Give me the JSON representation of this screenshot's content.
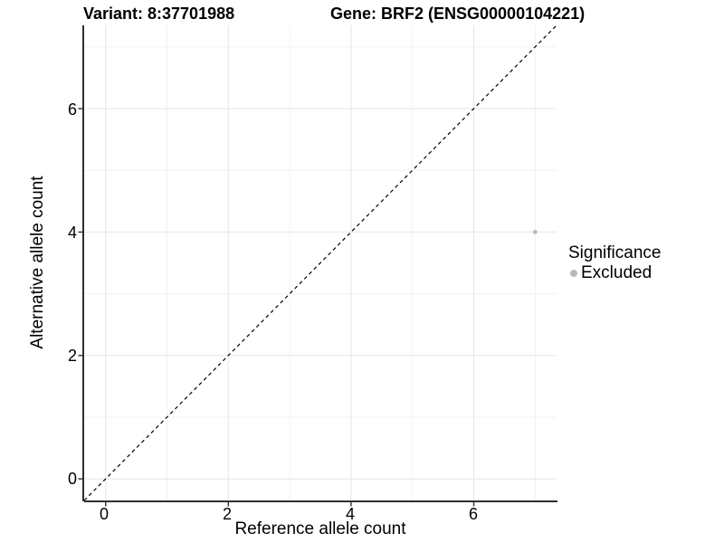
{
  "header": {
    "variant_title": "Variant: 8:37701988",
    "gene_title": "Gene: BRF2 (ENSG00000104221)"
  },
  "axes": {
    "x": {
      "title": "Reference allele count",
      "tick_labels": [
        "0",
        "2",
        "4",
        "6"
      ]
    },
    "y": {
      "title": "Alternative allele count",
      "tick_labels": [
        "0",
        "2",
        "4",
        "6"
      ]
    }
  },
  "legend": {
    "title": "Significance",
    "items": [
      {
        "label": "Excluded",
        "color": "#b9b9b9"
      }
    ]
  },
  "colors": {
    "grid_major": "#e9e9e9",
    "grid_minor": "#f1f1f1",
    "axis_line": "#2e2e2e",
    "reference_line": "#000000",
    "point": "#b9b9b9",
    "text": "#000000"
  },
  "chart_data": {
    "type": "scatter",
    "title": "Variant: 8:37701988 | Gene: BRF2 (ENSG00000104221)",
    "xlabel": "Reference allele count",
    "ylabel": "Alternative allele count",
    "xlim": [
      -0.35,
      7.35
    ],
    "ylim": [
      -0.35,
      7.35
    ],
    "x_ticks": [
      0,
      2,
      4,
      6
    ],
    "y_ticks": [
      0,
      2,
      4,
      6
    ],
    "x_grid_minor": [
      1,
      3,
      5,
      7
    ],
    "y_grid_minor": [
      1,
      3,
      5,
      7
    ],
    "grid": true,
    "legend_position": "right",
    "series": [
      {
        "name": "Excluded",
        "color": "#b9b9b9",
        "point_radius": 2.4,
        "points": [
          {
            "x": 7,
            "y": 4
          }
        ]
      }
    ],
    "reference_line": {
      "meaning": "identity line y = x",
      "style": "dashed",
      "color": "#000000",
      "from": [
        -0.35,
        -0.35
      ],
      "to": [
        7.35,
        7.35
      ]
    }
  }
}
